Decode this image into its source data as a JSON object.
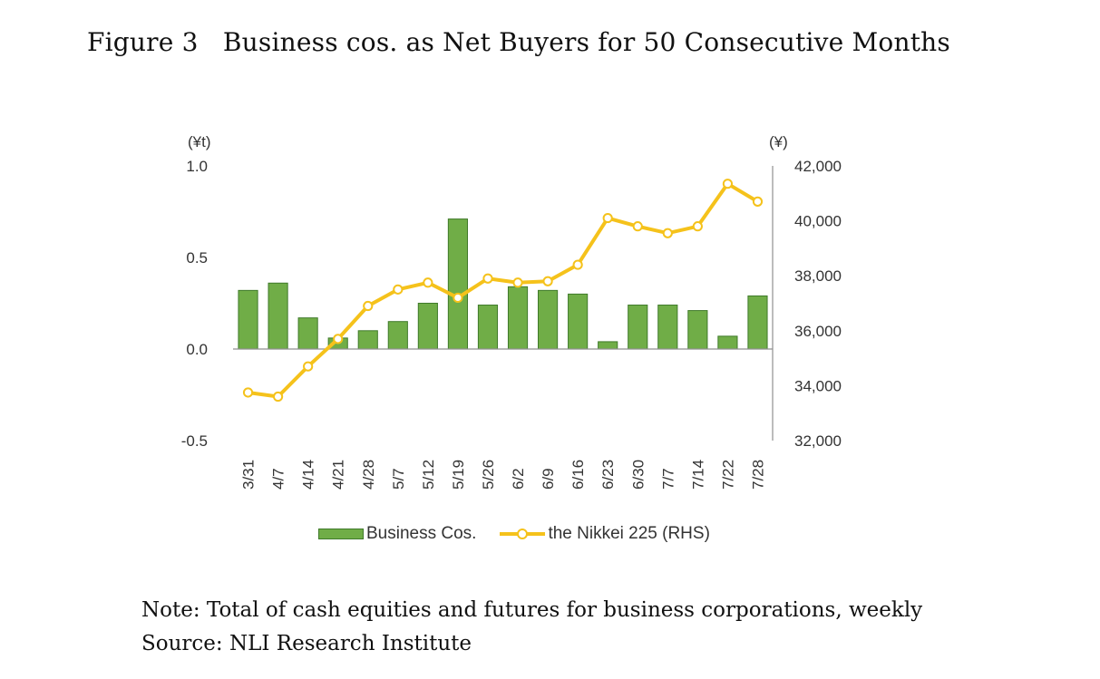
{
  "figure": {
    "title": "Figure 3   Business cos. as Net Buyers for 50 Consecutive Months",
    "note": "Note: Total of cash equities and futures for business corporations, weekly",
    "source": "Source: NLI Research Institute"
  },
  "chart_data": {
    "type": "bar",
    "title": "",
    "y_left_unit": "(¥t)",
    "y_right_unit": "(¥)",
    "ylim_left": [
      -0.5,
      1.0
    ],
    "ylim_right": [
      32000,
      42000
    ],
    "left_ticks": [
      "1.0",
      "0.5",
      "0.0",
      "-0.5"
    ],
    "left_tick_values": [
      1.0,
      0.5,
      0.0,
      -0.5
    ],
    "right_ticks": [
      "42,000",
      "40,000",
      "38,000",
      "36,000",
      "34,000",
      "32,000"
    ],
    "right_tick_values": [
      42000,
      40000,
      38000,
      36000,
      34000,
      32000
    ],
    "grid": false,
    "legend_position": "bottom",
    "categories": [
      "3/31",
      "4/7",
      "4/14",
      "4/21",
      "4/28",
      "5/7",
      "5/12",
      "5/19",
      "5/26",
      "6/2",
      "6/9",
      "6/16",
      "6/23",
      "6/30",
      "7/7",
      "7/14",
      "7/22",
      "7/28"
    ],
    "series": [
      {
        "name": "Business Cos.",
        "type": "bar",
        "axis": "left",
        "color": "#70ad47",
        "values": [
          0.32,
          0.36,
          0.17,
          0.06,
          0.1,
          0.15,
          0.25,
          0.71,
          0.24,
          0.34,
          0.32,
          0.3,
          0.04,
          0.24,
          0.24,
          0.21,
          0.07,
          0.29
        ]
      },
      {
        "name": "the Nikkei 225 (RHS)",
        "type": "line",
        "axis": "right",
        "color": "#f5c21b",
        "values": [
          33750,
          33600,
          34700,
          35700,
          36900,
          37500,
          37750,
          37200,
          37900,
          37750,
          37800,
          38400,
          40100,
          39800,
          39550,
          39800,
          41350,
          40700
        ]
      }
    ]
  }
}
